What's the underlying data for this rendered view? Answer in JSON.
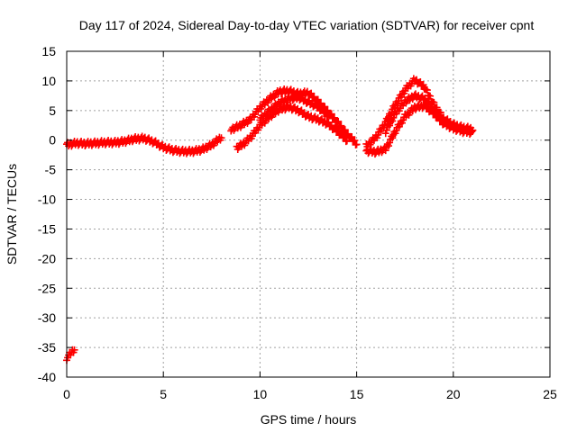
{
  "chart_data": {
    "type": "scatter",
    "title": "Day 117 of 2024, Sidereal Day-to-day VTEC variation (SDTVAR) for receiver cpnt",
    "xlabel": "GPS time / hours",
    "ylabel": "SDTVAR / TECUs",
    "xlim": [
      0,
      25
    ],
    "ylim": [
      -40,
      15
    ],
    "xticks": [
      0,
      5,
      10,
      15,
      20,
      25
    ],
    "yticks": [
      15,
      10,
      5,
      0,
      -5,
      -10,
      -15,
      -20,
      -25,
      -30,
      -35,
      -40
    ],
    "xtick_labels": [
      "0",
      "5",
      "10",
      "15",
      "20",
      "25"
    ],
    "ytick_labels": [
      "15",
      "10",
      "5",
      "0",
      "-5",
      "-10",
      "-15",
      "-20",
      "-25",
      "-30",
      "-35",
      "-40"
    ],
    "grid": true,
    "marker": "+",
    "series_color": "#ff0000",
    "series": [
      {
        "name": "outlier start",
        "x": [
          0.0,
          0.2,
          0.4
        ],
        "y": [
          -36.8,
          -36.0,
          -35.3
        ]
      },
      {
        "name": "night baseline",
        "x": [
          0.0,
          0.5,
          1.0,
          1.5,
          2.0,
          2.5,
          3.0,
          3.5,
          4.0,
          4.5,
          5.0,
          5.5,
          6.0,
          6.5,
          7.0,
          7.5,
          8.0
        ],
        "y": [
          -0.8,
          -0.5,
          -0.6,
          -0.5,
          -0.4,
          -0.4,
          -0.2,
          0.2,
          0.3,
          -0.3,
          -1.2,
          -1.7,
          -1.9,
          -1.9,
          -1.6,
          -0.8,
          0.5
        ]
      },
      {
        "name": "morning rise trace A",
        "x": [
          8.5,
          9.0,
          9.5,
          10.0,
          10.5,
          11.0,
          11.5,
          12.0,
          12.5,
          13.0,
          13.5,
          14.0,
          14.5,
          15.0
        ],
        "y": [
          1.8,
          2.5,
          3.5,
          5.5,
          7.0,
          8.2,
          8.3,
          7.8,
          8.0,
          6.5,
          4.8,
          3.0,
          1.0,
          -0.6
        ]
      },
      {
        "name": "morning rise trace B",
        "x": [
          8.8,
          9.2,
          9.6,
          10.0,
          10.5,
          11.0,
          11.5,
          12.0,
          12.5,
          13.0,
          13.5,
          14.0,
          14.5
        ],
        "y": [
          -1.3,
          -0.5,
          0.8,
          2.5,
          4.0,
          5.2,
          5.6,
          5.0,
          4.0,
          3.5,
          2.8,
          1.5,
          0.0
        ]
      },
      {
        "name": "morning rise trace C",
        "x": [
          10.0,
          10.5,
          11.0,
          11.5,
          12.0,
          12.5,
          13.0,
          13.5
        ],
        "y": [
          3.5,
          5.0,
          6.3,
          7.0,
          7.2,
          6.4,
          5.6,
          4.2
        ]
      },
      {
        "name": "afternoon trace A",
        "x": [
          15.5,
          16.0,
          16.5,
          17.0,
          17.5,
          18.0,
          18.5,
          19.0,
          19.5,
          20.0,
          20.5,
          21.0
        ],
        "y": [
          -1.0,
          0.5,
          3.0,
          6.0,
          8.5,
          10.2,
          9.0,
          6.0,
          3.6,
          2.6,
          2.1,
          1.8
        ]
      },
      {
        "name": "afternoon trace B",
        "x": [
          15.5,
          16.0,
          16.5,
          17.0,
          17.5,
          18.0,
          18.5,
          19.0,
          19.5,
          20.0,
          20.5,
          21.0
        ],
        "y": [
          -1.8,
          -2.0,
          -1.5,
          1.5,
          4.0,
          5.5,
          5.8,
          4.5,
          2.8,
          2.0,
          1.5,
          1.3
        ]
      },
      {
        "name": "afternoon trace C",
        "x": [
          16.5,
          17.0,
          17.5,
          18.0,
          18.5,
          19.0
        ],
        "y": [
          1.5,
          4.5,
          6.5,
          7.5,
          7.0,
          5.0
        ]
      }
    ]
  }
}
